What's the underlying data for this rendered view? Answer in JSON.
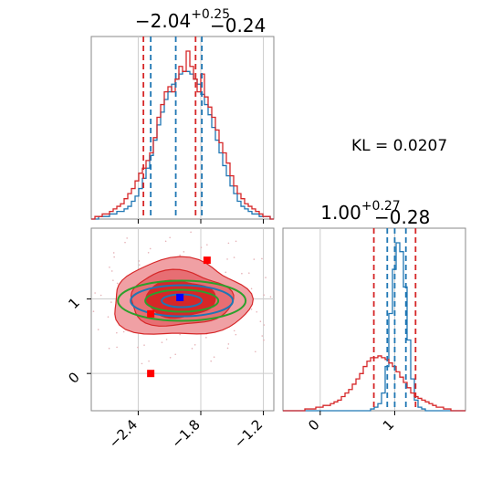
{
  "kl_label": "KL = 0.0207",
  "colors": {
    "blue": "#1f77b4",
    "red": "#d62728",
    "green": "#2ca02c",
    "marker_red": "#ff0000",
    "marker_blue": "#0000ff",
    "grid": "#cccccc",
    "frame": "#888888"
  },
  "chart_data": [
    {
      "type": "histogram",
      "panel": "marginal-param-1",
      "title_main": "−2.04",
      "title_plus": "+0.25",
      "title_minus": "−0.24",
      "xlim": [
        -2.85,
        -1.1
      ],
      "xticks": [
        -2.4,
        -1.8,
        -1.2
      ],
      "blue_quantile_lines": [
        -2.28,
        -2.04,
        -1.79
      ],
      "red_quantile_lines": [
        -2.35,
        -1.85
      ],
      "series": [
        {
          "color": "blue",
          "bin_edges": [
            -2.85,
            -1.1
          ],
          "counts": [
            0,
            0,
            1,
            1,
            1,
            2,
            2,
            3,
            3,
            4,
            5,
            7,
            9,
            12,
            16,
            20,
            25,
            31,
            37,
            42,
            47,
            50,
            53,
            55,
            57,
            58,
            58,
            57,
            55,
            53,
            49,
            45,
            41,
            36,
            31,
            26,
            21,
            17,
            13,
            10,
            7,
            5,
            4,
            3,
            2,
            2,
            1,
            1,
            1,
            0
          ]
        },
        {
          "color": "red",
          "bin_edges": [
            -2.85,
            -1.1
          ],
          "counts": [
            0,
            1,
            1,
            2,
            2,
            3,
            4,
            5,
            6,
            8,
            10,
            12,
            15,
            18,
            20,
            23,
            26,
            32,
            40,
            45,
            50,
            52,
            50,
            55,
            60,
            58,
            66,
            60,
            55,
            50,
            57,
            48,
            44,
            40,
            35,
            30,
            26,
            22,
            17,
            13,
            10,
            8,
            6,
            5,
            4,
            3,
            2,
            1,
            1,
            0
          ]
        }
      ]
    },
    {
      "type": "histogram",
      "panel": "marginal-param-2",
      "title_main": "1.00",
      "title_plus": "+0.27",
      "title_minus": "−0.28",
      "xlim": [
        -0.5,
        1.95
      ],
      "xticks": [
        0,
        1
      ],
      "blue_quantile_lines": [
        0.9,
        1.0,
        1.15
      ],
      "red_quantile_lines": [
        0.72,
        1.28
      ],
      "series": [
        {
          "color": "blue",
          "bin_edges": [
            -0.5,
            1.95
          ],
          "counts": [
            0,
            0,
            0,
            0,
            0,
            0,
            0,
            0,
            0,
            0,
            0,
            0,
            0,
            0,
            0,
            0,
            0,
            0,
            0,
            0,
            0,
            0,
            0,
            0,
            1,
            2,
            4,
            10,
            25,
            55,
            80,
            95,
            90,
            70,
            40,
            18,
            6,
            2,
            1,
            0,
            0,
            0,
            0,
            0,
            0,
            0,
            0,
            0,
            0,
            0
          ]
        },
        {
          "color": "red",
          "bin_edges": [
            -0.5,
            1.95
          ],
          "counts": [
            0,
            0,
            0,
            0,
            0,
            0,
            1,
            1,
            1,
            2,
            2,
            3,
            3,
            4,
            5,
            6,
            8,
            10,
            12,
            15,
            18,
            21,
            25,
            28,
            30,
            30,
            31,
            30,
            29,
            27,
            25,
            22,
            19,
            16,
            13,
            10,
            8,
            7,
            6,
            5,
            4,
            3,
            2,
            2,
            1,
            1,
            0,
            0,
            0,
            0
          ]
        }
      ]
    },
    {
      "type": "contour",
      "panel": "joint-param-1-param-2",
      "xlim": [
        -2.85,
        -1.1
      ],
      "ylim": [
        -0.5,
        1.95
      ],
      "xticks": [
        -2.4,
        -1.8,
        -1.2
      ],
      "yticks": [
        0,
        1
      ],
      "blue_center": [
        -2.0,
        1.0
      ],
      "red_square_markers": [
        [
          -1.74,
          1.52
        ],
        [
          -2.28,
          0.0
        ],
        [
          -2.28,
          0.8
        ]
      ],
      "blue_square_markers": [
        [
          -2.0,
          1.02
        ]
      ]
    }
  ]
}
